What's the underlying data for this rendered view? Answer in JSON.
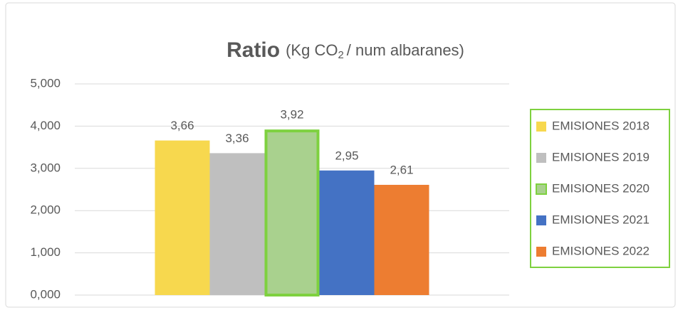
{
  "chart_data": {
    "type": "bar",
    "title_parts": [
      "Ratio",
      "(Kg CO",
      "2",
      "/ num albaranes)"
    ],
    "categories": [
      null
    ],
    "series": [
      {
        "name": "EMISIONES 2018",
        "color": "#f7d84e",
        "values": [
          3.66
        ],
        "value_labels": [
          "3,66"
        ]
      },
      {
        "name": "EMISIONES 2019",
        "color": "#bfbfbf",
        "values": [
          3.36
        ],
        "value_labels": [
          "3,36"
        ]
      },
      {
        "name": "EMISIONES 2020",
        "color": "#a9d18e",
        "border": "#7ed13f",
        "values": [
          3.92
        ],
        "value_labels": [
          "3,92"
        ]
      },
      {
        "name": "EMISIONES 2021",
        "color": "#4472c4",
        "values": [
          2.95
        ],
        "value_labels": [
          "2,95"
        ]
      },
      {
        "name": "EMISIONES 2022",
        "color": "#ed7d31",
        "values": [
          2.61
        ],
        "value_labels": [
          "2,61"
        ]
      }
    ],
    "ylim": [
      0,
      5
    ],
    "yticks": [
      {
        "value": 0,
        "label": "0,000"
      },
      {
        "value": 1,
        "label": "1,000"
      },
      {
        "value": 2,
        "label": "2,000"
      },
      {
        "value": 3,
        "label": "3,000"
      },
      {
        "value": 4,
        "label": "4,000"
      },
      {
        "value": 5,
        "label": "5,000"
      }
    ],
    "grid": true,
    "legend": "right",
    "legend_border": "#7ed13f"
  }
}
